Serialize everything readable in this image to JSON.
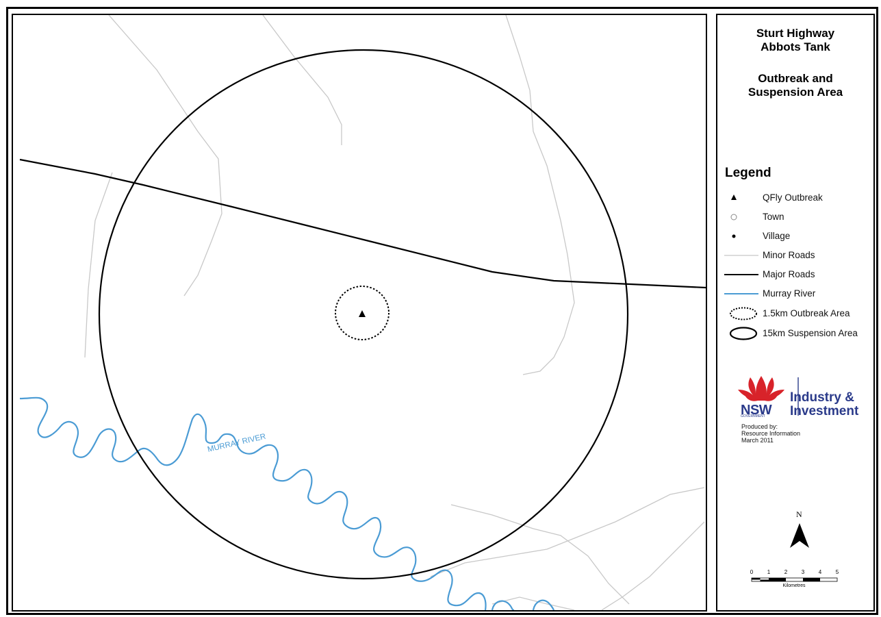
{
  "title": {
    "line1": "Sturt Highway",
    "line2": "Abbots Tank",
    "line3": "Outbreak and",
    "line4": "Suspension Area"
  },
  "map": {
    "river_label": "MURRAY RIVER",
    "river_color": "#4a9bd4",
    "major_road_color": "#000000",
    "minor_road_color": "#c8c8c8"
  },
  "legend": {
    "heading": "Legend",
    "items": [
      {
        "label": "QFly Outbreak",
        "symbol": "triangle-icon"
      },
      {
        "label": "Town",
        "symbol": "hollow-circle-icon"
      },
      {
        "label": "Village",
        "symbol": "dot-icon"
      },
      {
        "label": "Minor Roads",
        "symbol": "minor-road-line"
      },
      {
        "label": "Major Roads",
        "symbol": "major-road-line"
      },
      {
        "label": "Murray River",
        "symbol": "river-line"
      },
      {
        "label": "1.5km Outbreak Area",
        "symbol": "dotted-ellipse"
      },
      {
        "label": "15km Suspension Area",
        "symbol": "solid-ellipse"
      }
    ]
  },
  "logo": {
    "nsw": "NSW",
    "government": "GOVERNMENT",
    "line1": "Industry &",
    "line2": "Investment",
    "color": "#2a3a8a",
    "flower_color": "#d8232a"
  },
  "produced": {
    "line1": "Produced by:",
    "line2": "Resource Information",
    "line3": "March 2011"
  },
  "north": {
    "label": "N"
  },
  "scale": {
    "ticks": [
      "0",
      "1",
      "2",
      "3",
      "4",
      "5"
    ],
    "unit": "Kilometres"
  }
}
